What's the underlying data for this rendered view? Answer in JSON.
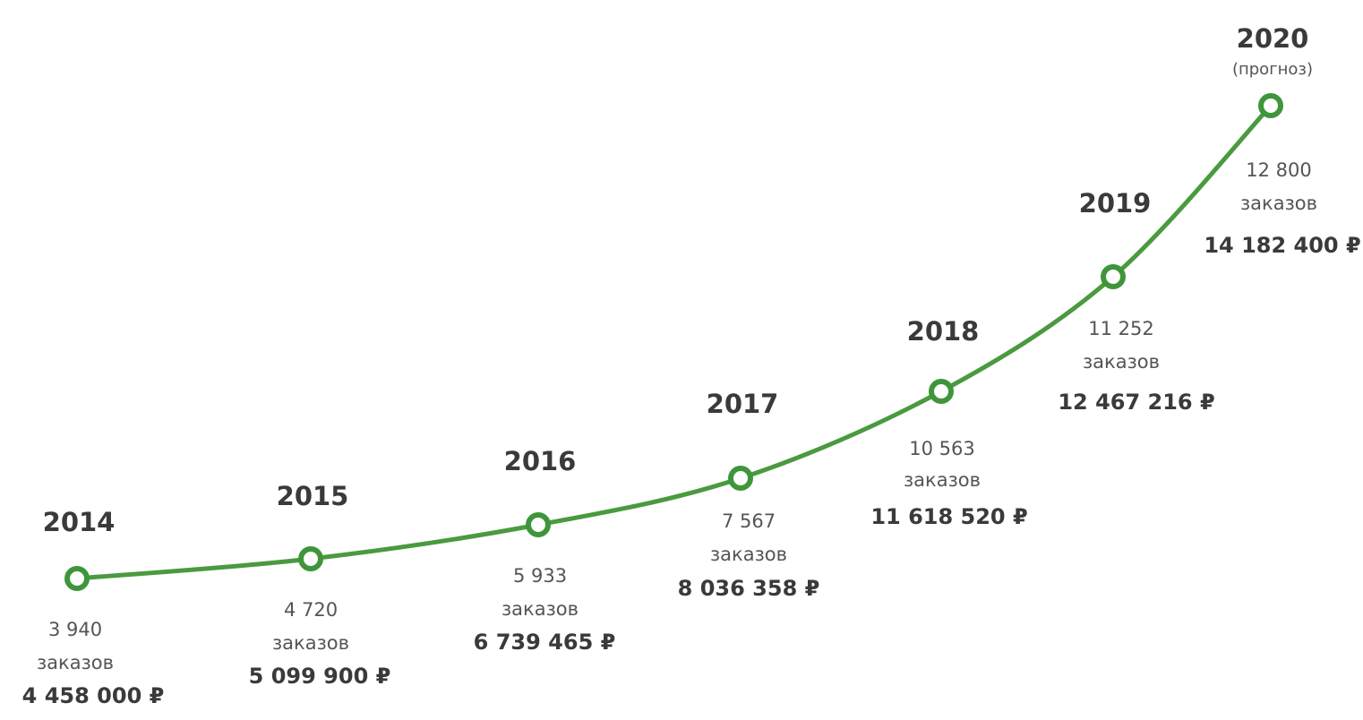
{
  "items": [
    {
      "year": "2014",
      "orders": "3 940",
      "unit": "заказов",
      "revenue": "4 458 000 ₽"
    },
    {
      "year": "2015",
      "orders": "4 720",
      "unit": "заказов",
      "revenue": "5 099 900 ₽"
    },
    {
      "year": "2016",
      "orders": "5 933",
      "unit": "заказов",
      "revenue": "6 739 465 ₽"
    },
    {
      "year": "2017",
      "orders": "7 567",
      "unit": "заказов",
      "revenue": "8 036 358 ₽"
    },
    {
      "year": "2018",
      "orders": "10 563",
      "unit": "заказов",
      "revenue": "11 618 520 ₽"
    },
    {
      "year": "2019",
      "orders": "11 252",
      "unit": "заказов",
      "revenue": "12 467 216 ₽"
    },
    {
      "year": "2020",
      "note": "(прогноз)",
      "orders": "12 800",
      "unit": "заказов",
      "revenue": "14 182 400 ₽"
    }
  ]
}
